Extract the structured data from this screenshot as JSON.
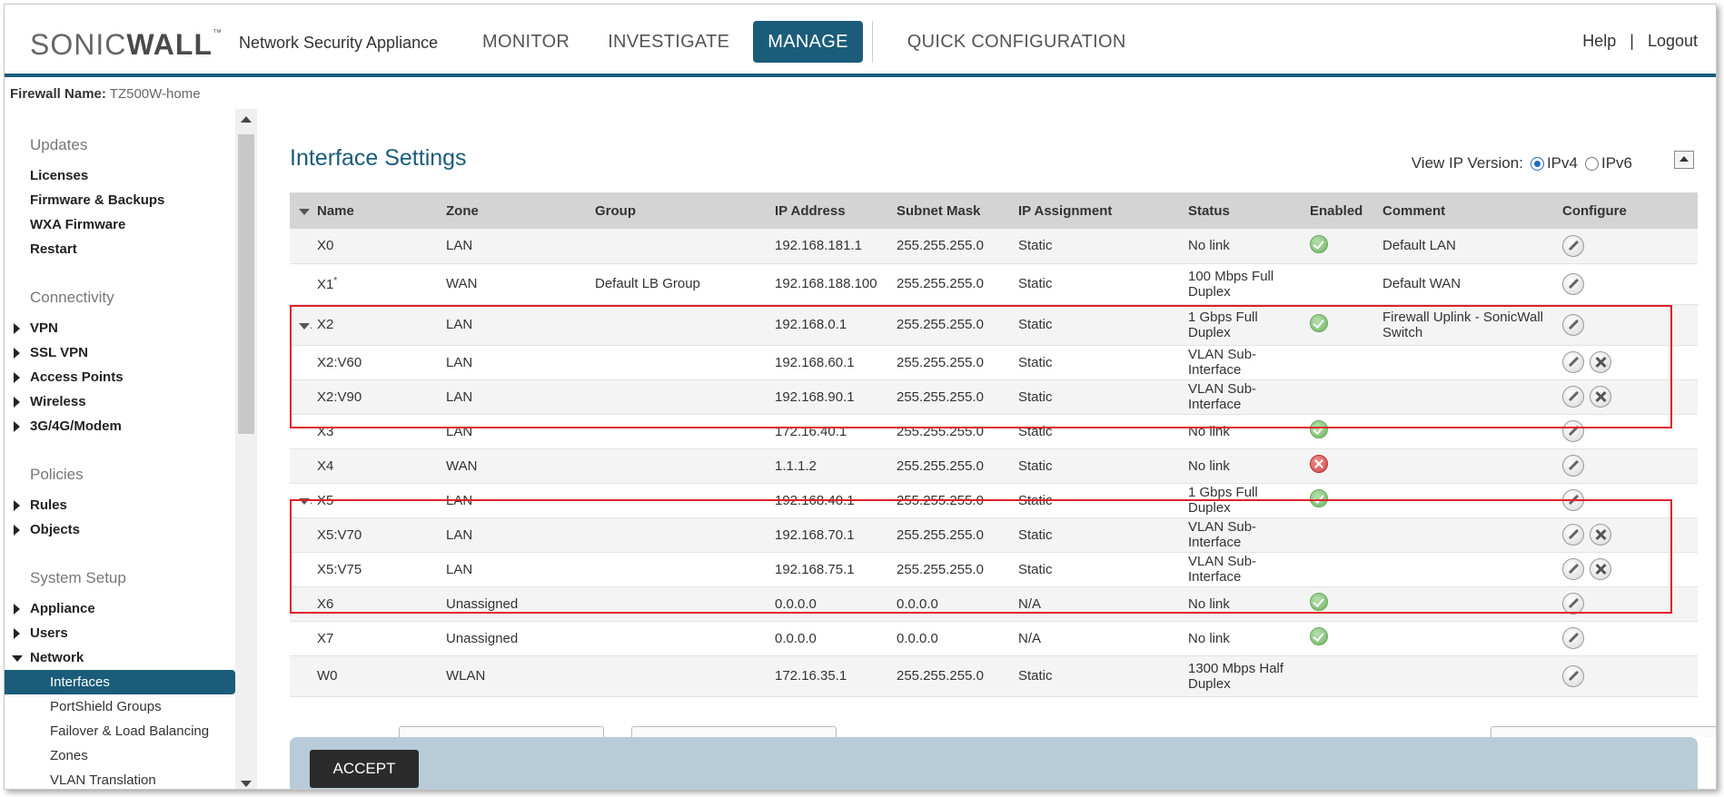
{
  "header": {
    "logo_left": "SONIC",
    "logo_right": "WALL",
    "logo_tm": "™",
    "app_name": "Network Security Appliance",
    "nav": [
      "MONITOR",
      "INVESTIGATE",
      "MANAGE",
      "QUICK CONFIGURATION"
    ],
    "active_nav": "MANAGE",
    "help": "Help",
    "sep": "|",
    "logout": "Logout",
    "accent": "#1b5c7a"
  },
  "firewall": {
    "label": "Firewall Name:",
    "value": "TZ500W-home"
  },
  "sidebar": {
    "sections": [
      {
        "title": "Updates",
        "items": [
          "Licenses",
          "Firmware & Backups",
          "WXA Firmware",
          "Restart"
        ]
      },
      {
        "title": "Connectivity",
        "items": [
          "VPN",
          "SSL VPN",
          "Access Points",
          "Wireless",
          "3G/4G/Modem"
        ]
      },
      {
        "title": "Policies",
        "items": [
          "Rules",
          "Objects"
        ]
      },
      {
        "title": "System Setup",
        "items": [
          "Appliance",
          "Users",
          "Network"
        ]
      }
    ],
    "network_sub": [
      "Interfaces",
      "PortShield Groups",
      "Failover & Load Balancing",
      "Zones",
      "VLAN Translation"
    ],
    "active": "Interfaces"
  },
  "main": {
    "title": "Interface Settings",
    "ip_version_label": "View IP Version:",
    "ipv4": "IPv4",
    "ipv6": "IPv6",
    "columns": [
      "Name",
      "Zone",
      "Group",
      "IP Address",
      "Subnet Mask",
      "IP Assignment",
      "Status",
      "Enabled",
      "Comment",
      "Configure"
    ],
    "rows": [
      {
        "name": "X0",
        "zone": "LAN",
        "group": "",
        "ip": "192.168.181.1",
        "mask": "255.255.255.0",
        "assign": "Static",
        "status": "No link",
        "enabled": "ok",
        "comment": "Default LAN",
        "del": false
      },
      {
        "name": "X1",
        "sup": "*",
        "zone": "WAN",
        "group": "Default LB Group",
        "ip": "192.168.188.100",
        "mask": "255.255.255.0",
        "assign": "Static",
        "status": "100 Mbps Full Duplex",
        "enabled": "",
        "comment": "Default WAN",
        "del": false
      },
      {
        "name": "X2",
        "expand": true,
        "zone": "LAN",
        "group": "",
        "ip": "192.168.0.1",
        "mask": "255.255.255.0",
        "assign": "Static",
        "status": "1 Gbps Full Duplex",
        "enabled": "ok",
        "comment": "Firewall Uplink - SonicWall Switch",
        "del": false
      },
      {
        "name": "X2:V60",
        "zone": "LAN",
        "group": "",
        "ip": "192.168.60.1",
        "mask": "255.255.255.0",
        "assign": "Static",
        "status": "VLAN Sub-Interface",
        "enabled": "",
        "comment": "",
        "del": true
      },
      {
        "name": "X2:V90",
        "zone": "LAN",
        "group": "",
        "ip": "192.168.90.1",
        "mask": "255.255.255.0",
        "assign": "Static",
        "status": "VLAN Sub-Interface",
        "enabled": "",
        "comment": "",
        "del": true
      },
      {
        "name": "X3",
        "zone": "LAN",
        "group": "",
        "ip": "172.16.40.1",
        "mask": "255.255.255.0",
        "assign": "Static",
        "status": "No link",
        "enabled": "ok",
        "comment": "",
        "del": false
      },
      {
        "name": "X4",
        "zone": "WAN",
        "group": "",
        "ip": "1.1.1.2",
        "mask": "255.255.255.0",
        "assign": "Static",
        "status": "No link",
        "enabled": "err",
        "comment": "",
        "del": false
      },
      {
        "name": "X5",
        "expand": true,
        "zone": "LAN",
        "group": "",
        "ip": "192.168.40.1",
        "mask": "255.255.255.0",
        "assign": "Static",
        "status": "1 Gbps Full Duplex",
        "enabled": "ok",
        "comment": "",
        "del": false
      },
      {
        "name": "X5:V70",
        "zone": "LAN",
        "group": "",
        "ip": "192.168.70.1",
        "mask": "255.255.255.0",
        "assign": "Static",
        "status": "VLAN Sub-Interface",
        "enabled": "",
        "comment": "",
        "del": true
      },
      {
        "name": "X5:V75",
        "zone": "LAN",
        "group": "",
        "ip": "192.168.75.1",
        "mask": "255.255.255.0",
        "assign": "Static",
        "status": "VLAN Sub-Interface",
        "enabled": "",
        "comment": "",
        "del": true
      },
      {
        "name": "X6",
        "zone": "Unassigned",
        "group": "",
        "ip": "0.0.0.0",
        "mask": "0.0.0.0",
        "assign": "N/A",
        "status": "No link",
        "enabled": "ok",
        "comment": "",
        "del": false
      },
      {
        "name": "X7",
        "zone": "Unassigned",
        "group": "",
        "ip": "0.0.0.0",
        "mask": "0.0.0.0",
        "assign": "N/A",
        "status": "No link",
        "enabled": "ok",
        "comment": "",
        "del": false
      },
      {
        "name": "W0",
        "zone": "WLAN",
        "group": "",
        "ip": "172.16.35.1",
        "mask": "255.255.255.0",
        "assign": "Static",
        "status": "1300 Mbps Half Duplex",
        "enabled": "",
        "comment": "",
        "del": false
      }
    ],
    "accept": "ACCEPT"
  },
  "colors": {
    "highlight": "#e0202a",
    "bottom_bar": "#b7ccd8"
  }
}
